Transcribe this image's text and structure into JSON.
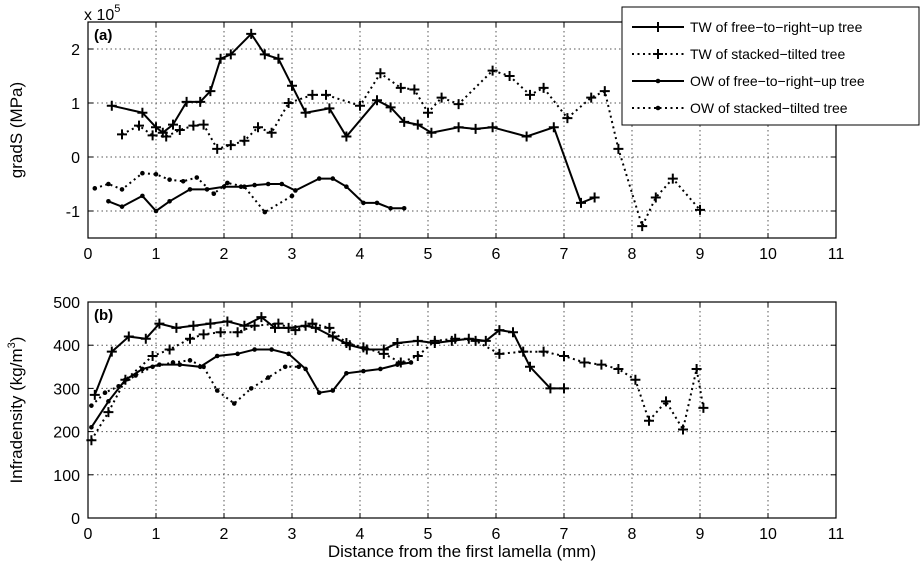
{
  "chart_data": [
    {
      "panel_label": "(a)",
      "type": "line",
      "ylabel": "gradS (MPa)",
      "xlabel": "",
      "exponent_label": "x 10",
      "exponent_power": "5",
      "xlim": [
        0,
        11
      ],
      "ylim": [
        -1.5,
        2.5
      ],
      "xticks": [
        "0",
        "1",
        "2",
        "3",
        "4",
        "5",
        "6",
        "7",
        "8",
        "9",
        "10",
        "11"
      ],
      "yticks": [
        "-1",
        "0",
        "1",
        "2"
      ],
      "grid": true,
      "legend_position": "top-right",
      "series": [
        {
          "name": "TW of free−to−right−up tree",
          "line": "solid",
          "marker": "plus",
          "x": [
            0.35,
            0.8,
            1.0,
            1.1,
            1.25,
            1.45,
            1.65,
            1.8,
            1.95,
            2.1,
            2.4,
            2.6,
            2.8,
            3.0,
            3.2,
            3.55,
            3.8,
            4.25,
            4.45,
            4.65,
            4.85,
            5.05,
            5.45,
            5.7,
            5.95,
            6.45,
            6.85,
            7.25,
            7.45
          ],
          "y": [
            0.95,
            0.82,
            0.55,
            0.45,
            0.6,
            1.02,
            1.02,
            1.22,
            1.82,
            1.9,
            2.28,
            1.9,
            1.82,
            1.32,
            0.82,
            0.9,
            0.38,
            1.05,
            0.92,
            0.65,
            0.6,
            0.45,
            0.55,
            0.52,
            0.55,
            0.38,
            0.55,
            -0.85,
            -0.75
          ]
        },
        {
          "name": "TW of stacked−tilted tree",
          "line": "dotted",
          "marker": "plus",
          "x": [
            0.5,
            0.75,
            0.95,
            1.15,
            1.35,
            1.55,
            1.7,
            1.9,
            2.1,
            2.3,
            2.5,
            2.7,
            2.95,
            3.3,
            3.5,
            4.0,
            4.3,
            4.6,
            4.8,
            5.0,
            5.2,
            5.45,
            5.95,
            6.2,
            6.5,
            6.7,
            7.05,
            7.4,
            7.6,
            7.8,
            8.15,
            8.35,
            8.6,
            9.0
          ],
          "y": [
            0.42,
            0.58,
            0.4,
            0.38,
            0.5,
            0.58,
            0.6,
            0.15,
            0.22,
            0.3,
            0.55,
            0.45,
            1.0,
            1.15,
            1.15,
            0.95,
            1.55,
            1.28,
            1.25,
            0.82,
            1.1,
            0.98,
            1.6,
            1.5,
            1.15,
            1.28,
            0.72,
            1.1,
            1.22,
            0.15,
            -1.28,
            -0.75,
            -0.4,
            -0.98
          ]
        },
        {
          "name": "OW of free−to−right−up tree",
          "line": "solid",
          "marker": "dot",
          "x": [
            0.3,
            0.5,
            0.8,
            1.0,
            1.2,
            1.5,
            1.75,
            2.0,
            2.25,
            2.45,
            2.65,
            2.85,
            3.05,
            3.4,
            3.6,
            3.8,
            4.05,
            4.25,
            4.45,
            4.65
          ],
          "y": [
            -0.82,
            -0.92,
            -0.72,
            -1.0,
            -0.82,
            -0.6,
            -0.6,
            -0.55,
            -0.55,
            -0.52,
            -0.5,
            -0.5,
            -0.62,
            -0.4,
            -0.4,
            -0.55,
            -0.85,
            -0.85,
            -0.95,
            -0.95
          ]
        },
        {
          "name": "OW of stacked−tilted tree",
          "line": "dotted",
          "marker": "dot",
          "x": [
            0.1,
            0.3,
            0.5,
            0.8,
            1.0,
            1.2,
            1.4,
            1.6,
            1.85,
            2.05,
            2.3,
            2.6,
            3.0
          ],
          "y": [
            -0.58,
            -0.5,
            -0.6,
            -0.3,
            -0.32,
            -0.42,
            -0.45,
            -0.38,
            -0.68,
            -0.48,
            -0.55,
            -1.02,
            -0.72
          ]
        }
      ]
    },
    {
      "panel_label": "(b)",
      "type": "line",
      "ylabel": "Infradensity (kg/m",
      "ylabel_power": "3",
      "ylabel_close": ")",
      "xlabel": "Distance from the first lamella (mm)",
      "xlim": [
        0,
        11
      ],
      "ylim": [
        0,
        500
      ],
      "xticks": [
        "0",
        "1",
        "2",
        "3",
        "4",
        "5",
        "6",
        "7",
        "8",
        "9",
        "10",
        "11"
      ],
      "yticks": [
        "0",
        "100",
        "200",
        "300",
        "400",
        "500"
      ],
      "grid": true,
      "series": [
        {
          "name": "TW of free−to−right−up tree",
          "line": "solid",
          "marker": "plus",
          "x": [
            0.1,
            0.35,
            0.6,
            0.85,
            1.05,
            1.3,
            1.55,
            1.8,
            2.05,
            2.3,
            2.55,
            2.75,
            2.95,
            3.2,
            3.35,
            3.6,
            3.85,
            4.1,
            4.35,
            4.55,
            4.85,
            5.1,
            5.35,
            5.6,
            5.85,
            6.05,
            6.25,
            6.5,
            6.8,
            7.0
          ],
          "y": [
            285,
            385,
            420,
            415,
            450,
            440,
            445,
            450,
            455,
            445,
            465,
            440,
            440,
            445,
            440,
            420,
            400,
            390,
            390,
            405,
            410,
            405,
            410,
            415,
            410,
            435,
            430,
            350,
            300,
            300
          ]
        },
        {
          "name": "TW of stacked−tilted tree",
          "line": "dotted",
          "marker": "plus",
          "x": [
            0.05,
            0.3,
            0.55,
            0.95,
            1.2,
            1.5,
            1.7,
            1.95,
            2.2,
            2.45,
            2.8,
            3.05,
            3.3,
            3.55,
            3.8,
            4.05,
            4.35,
            4.6,
            4.85,
            5.1,
            5.4,
            5.7,
            6.05,
            6.4,
            6.7,
            7.0,
            7.3,
            7.55,
            7.8,
            8.05,
            8.25,
            8.5,
            8.75,
            8.95,
            9.05
          ],
          "y": [
            180,
            245,
            320,
            375,
            390,
            415,
            425,
            430,
            430,
            445,
            450,
            435,
            450,
            440,
            405,
            395,
            380,
            360,
            375,
            410,
            415,
            410,
            380,
            385,
            385,
            375,
            360,
            355,
            345,
            320,
            225,
            270,
            205,
            345,
            255
          ]
        },
        {
          "name": "OW of free−to−right−up tree",
          "line": "solid",
          "marker": "dot",
          "x": [
            0.05,
            0.3,
            0.55,
            0.8,
            1.05,
            1.35,
            1.65,
            1.9,
            2.2,
            2.45,
            2.7,
            2.95,
            3.2,
            3.4,
            3.6,
            3.8,
            4.05,
            4.3,
            4.55,
            4.75
          ],
          "y": [
            210,
            270,
            320,
            345,
            355,
            355,
            350,
            375,
            380,
            390,
            390,
            380,
            345,
            290,
            295,
            335,
            340,
            345,
            355,
            360
          ]
        },
        {
          "name": "OW of stacked−tilted tree",
          "line": "dotted",
          "marker": "dot",
          "x": [
            0.05,
            0.25,
            0.45,
            0.7,
            0.95,
            1.25,
            1.5,
            1.7,
            1.9,
            2.15,
            2.4,
            2.65,
            2.9,
            3.1
          ],
          "y": [
            260,
            290,
            305,
            330,
            350,
            360,
            365,
            350,
            295,
            265,
            300,
            325,
            350,
            350
          ]
        }
      ]
    }
  ]
}
